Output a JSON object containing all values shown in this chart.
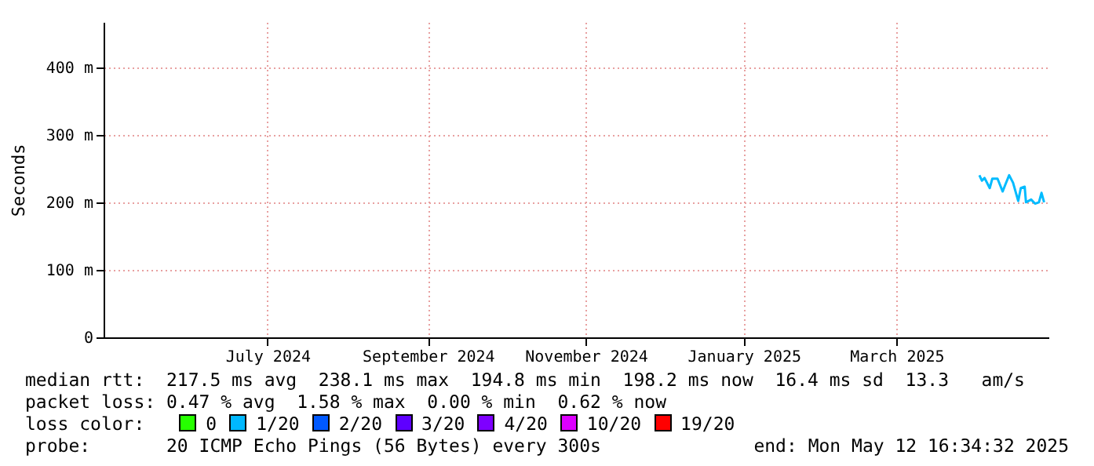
{
  "chart_data": {
    "type": "line",
    "ylabel": "Seconds",
    "x": [
      "2025-04-16T00:00",
      "2025-04-17T00:00",
      "2025-04-18T00:00",
      "2025-04-20T00:00",
      "2025-04-21T00:00",
      "2025-04-23T00:00",
      "2025-04-25T00:00",
      "2025-04-26T00:00",
      "2025-04-27T12:00",
      "2025-04-29T00:00",
      "2025-05-01T00:00",
      "2025-05-02T00:00",
      "2025-05-03T12:00",
      "2025-05-04T00:00",
      "2025-05-06T00:00",
      "2025-05-07T12:00",
      "2025-05-09T00:00",
      "2025-05-10T00:00",
      "2025-05-11T00:00"
    ],
    "series": [
      {
        "color": "#00bbff",
        "values": [
          240,
          232,
          236,
          221,
          235,
          235,
          216,
          226,
          240,
          229,
          202,
          221,
          223,
          200,
          204,
          198,
          200,
          214,
          200
        ]
      }
    ],
    "xlim": [
      "2024-05-12T16:34",
      "2025-05-12T16:34"
    ],
    "xticks": [
      {
        "value": "2024-07-15T00:00",
        "label": "July 2024"
      },
      {
        "value": "2024-09-15T00:00",
        "label": "September 2024"
      },
      {
        "value": "2024-11-15T00:00",
        "label": "November 2024"
      },
      {
        "value": "2025-01-15T00:00",
        "label": "January 2025"
      },
      {
        "value": "2025-03-15T00:00",
        "label": "March 2025"
      }
    ],
    "ylim": [
      0,
      467
    ],
    "yticks": [
      0,
      {
        "value": 100,
        "label": "100 m"
      },
      {
        "value": 200,
        "label": "200 m"
      },
      {
        "value": 300,
        "label": "300 m"
      },
      {
        "value": 400,
        "label": "400 m"
      }
    ],
    "grid": true,
    "marker": "none",
    "line_style": "solid",
    "annotations": [
      "median rtt:  217.5 ms avg  238.1 ms max  194.8 ms min  198.2 ms now  16.4 ms sd  13.3   am/s",
      "packet loss: 0.47 % avg  1.58 % max  0.00 % min  0.62 % now",
      "loss color:  0  1/20  2/20  3/20  4/20  10/20  19/20",
      "probe:       20 ICMP Echo Pings (56 Bytes) every 300s",
      "end: Mon May 12 16:34:32 2025"
    ]
  }
}
